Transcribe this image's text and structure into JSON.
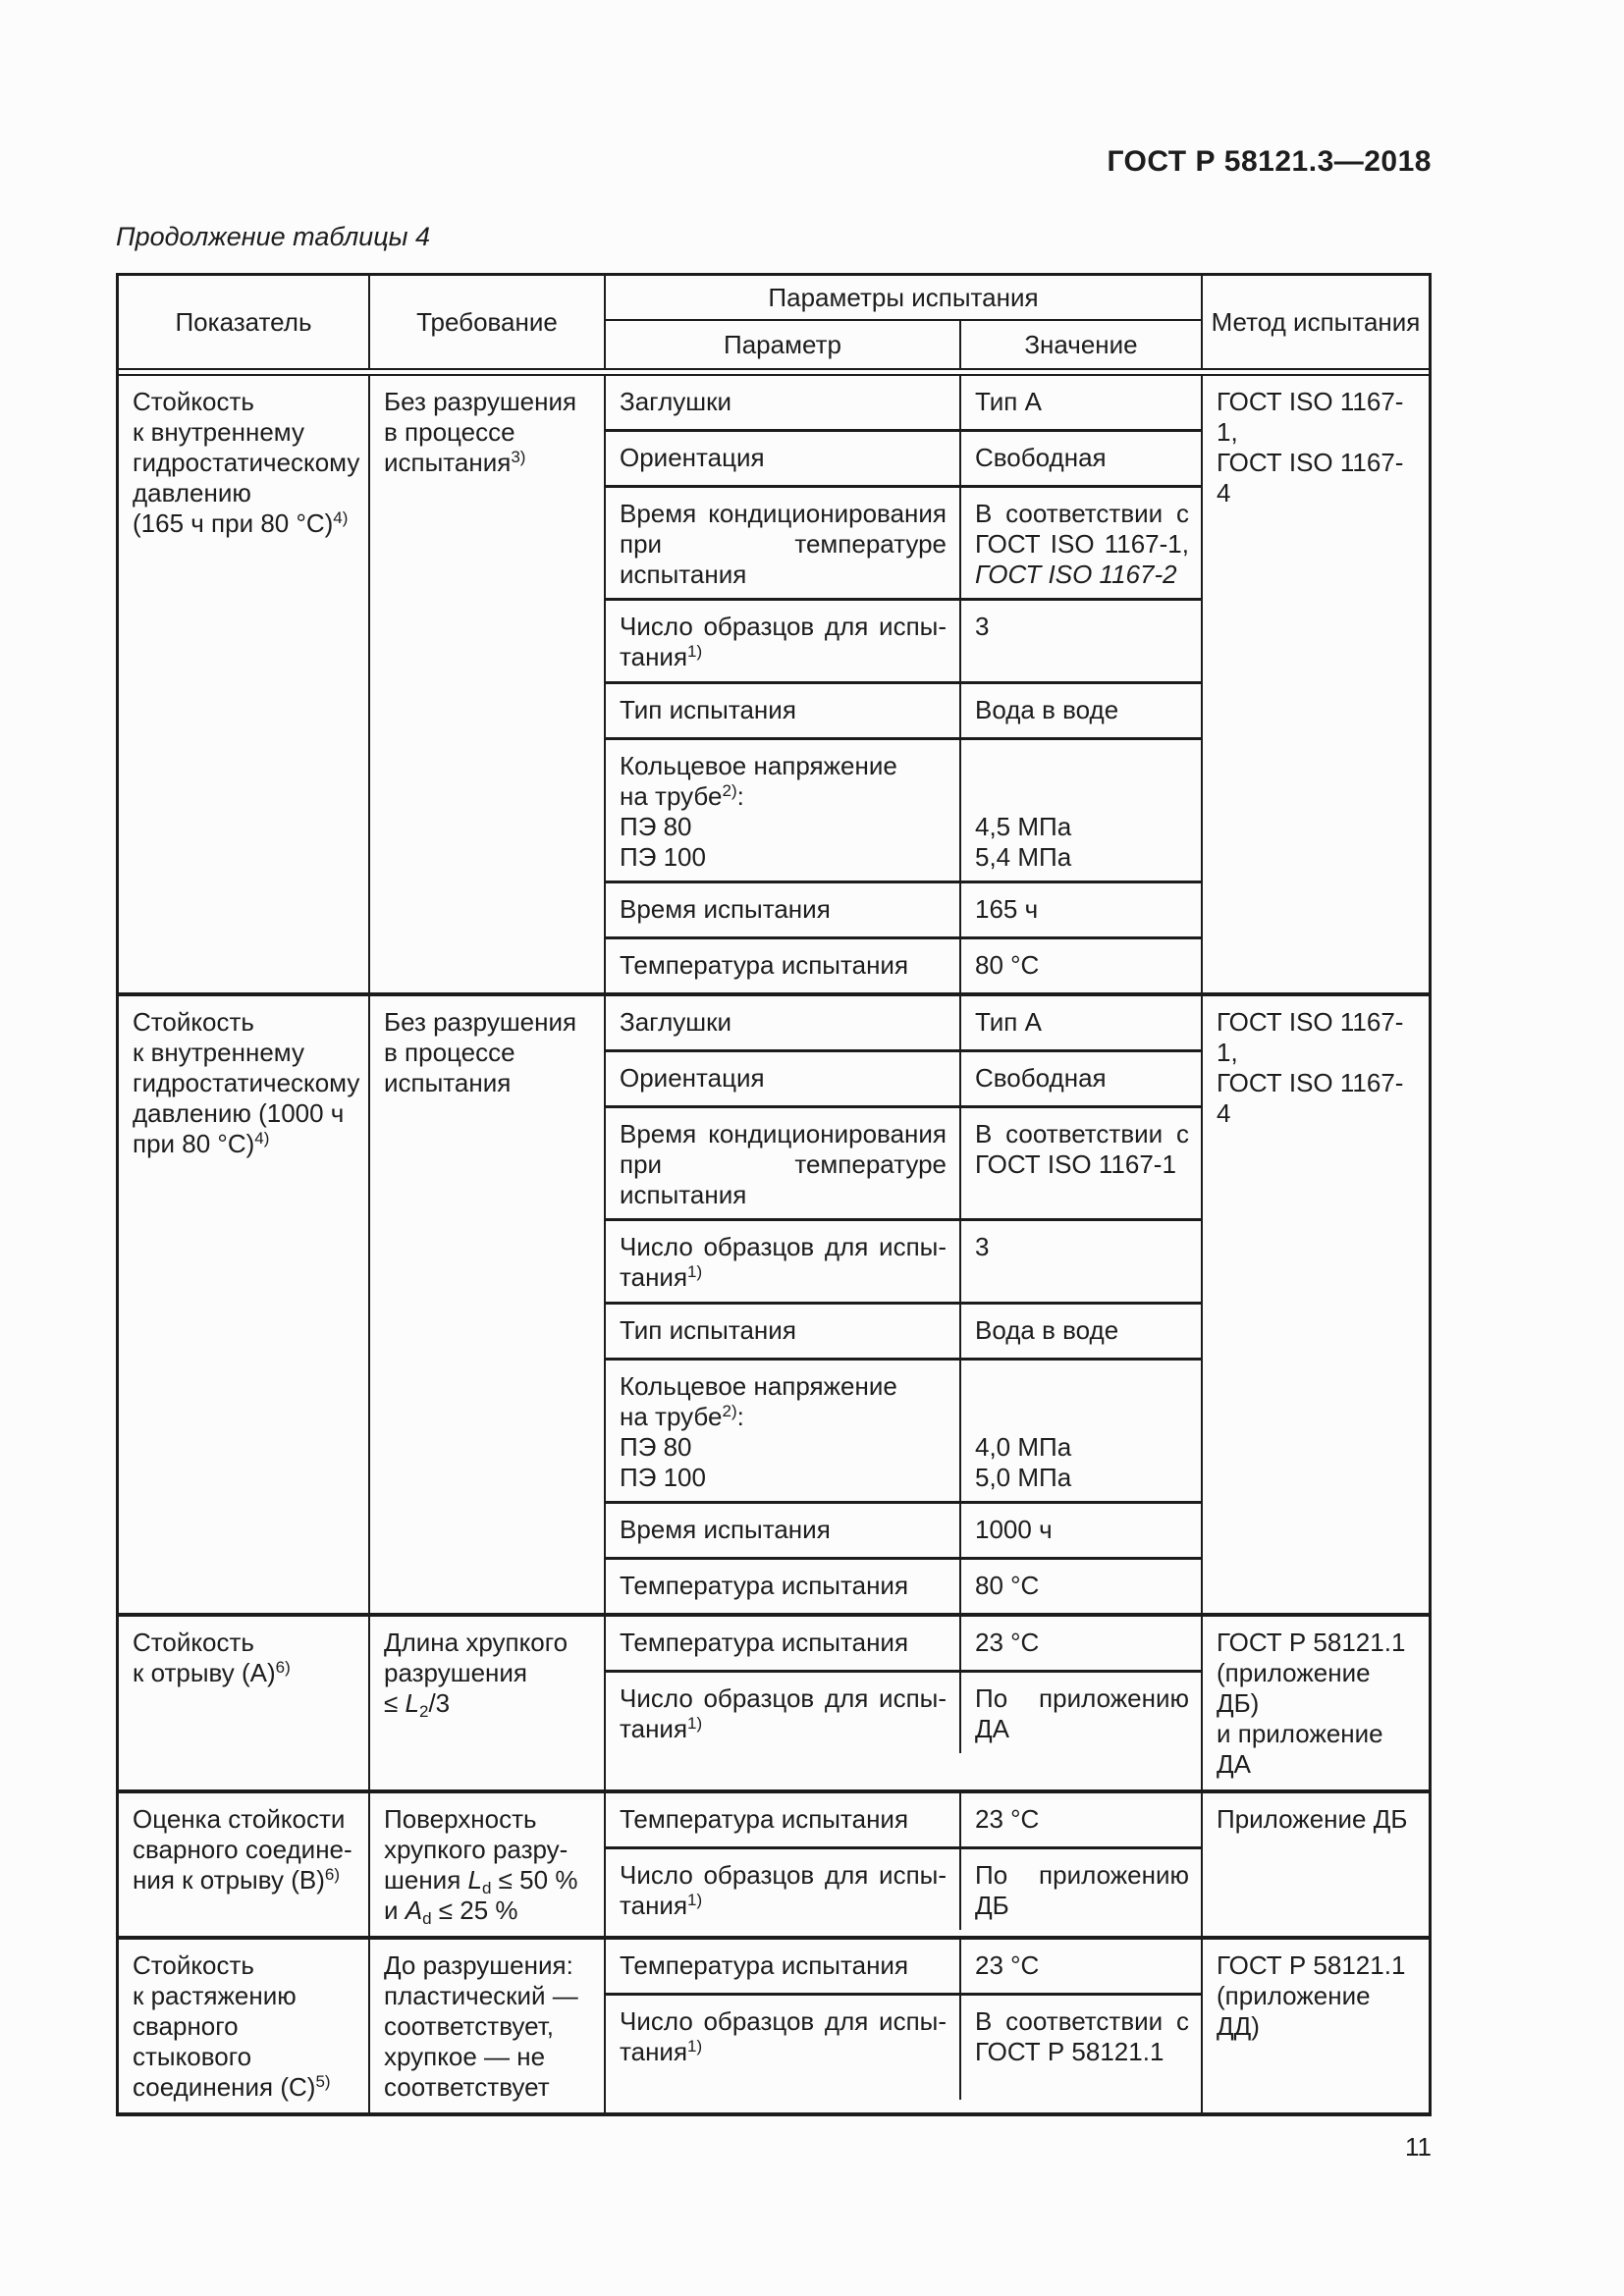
{
  "page": {
    "standard_title": "ГОСТ Р 58121.3—2018",
    "table_caption": "Продолжение таблицы 4",
    "page_number": "11"
  },
  "table": {
    "header": {
      "col_indicator": "Показатель",
      "col_requirement": "Требование",
      "col_params_group": "Параметры испытания",
      "col_param": "Параметр",
      "col_value": "Значение",
      "col_method": "Метод испытания"
    },
    "blocks": [
      {
        "indicator": {
          "text": "Стойкость\nк внутреннему\nгидростатическому\nдавлению\n(165 ч при 80 °C)",
          "sup": "4)"
        },
        "requirement": {
          "text": "Без разрушения\nв процессе\nиспытания",
          "sup": "3)"
        },
        "method": {
          "text": "ГОСТ ISO 1167-1,\nГОСТ ISO 1167-4"
        },
        "rows": [
          {
            "param": {
              "text": "Заглушки"
            },
            "value": {
              "text": "Тип А"
            }
          },
          {
            "param": {
              "text": "Ориентация"
            },
            "value": {
              "text": "Свободная"
            }
          },
          {
            "param": {
              "text": "Время кондиционирования при температуре испытания"
            },
            "value": {
              "text": "В соответствии с ГОСТ ISO 1167-1, ",
              "italic": "ГОСТ ISO 1167-2"
            }
          },
          {
            "param": {
              "text": "Число образцов для испы-тания",
              "sup": "1)"
            },
            "value": {
              "text": "3"
            }
          },
          {
            "param": {
              "text": "Тип испытания"
            },
            "value": {
              "text": "Вода в воде"
            }
          },
          {
            "param": {
              "text": "Кольцевое напряжение\nна трубе",
              "sup": "2)",
              "text2": ":\nПЭ 80\nПЭ 100"
            },
            "value": {
              "text": "4,5 МПа\n5,4 МПа"
            }
          },
          {
            "param": {
              "text": "Время испытания"
            },
            "value": {
              "text": "165 ч"
            }
          },
          {
            "param": {
              "text": "Температура испытания"
            },
            "value": {
              "text": "80 °C"
            }
          }
        ]
      },
      {
        "indicator": {
          "text": "Стойкость\nк внутреннему\nгидростатическому\nдавлению (1000 ч\nпри 80 °C)",
          "sup": "4)"
        },
        "requirement": {
          "text": "Без разрушения\nв процессе\nиспытания"
        },
        "method": {
          "text": "ГОСТ ISO 1167-1,\nГОСТ ISO 1167-4"
        },
        "rows": [
          {
            "param": {
              "text": "Заглушки"
            },
            "value": {
              "text": "Тип А"
            }
          },
          {
            "param": {
              "text": "Ориентация"
            },
            "value": {
              "text": "Свободная"
            }
          },
          {
            "param": {
              "text": "Время кондиционирования при температуре испытания"
            },
            "value": {
              "text": "В соответствии с ГОСТ ISO 1167-1"
            }
          },
          {
            "param": {
              "text": "Число образцов для испы-тания",
              "sup": "1)"
            },
            "value": {
              "text": "3"
            }
          },
          {
            "param": {
              "text": "Тип испытания"
            },
            "value": {
              "text": "Вода в воде"
            }
          },
          {
            "param": {
              "text": "Кольцевое напряжение\nна трубе",
              "sup": "2)",
              "text2": ":\nПЭ 80\nПЭ 100"
            },
            "value": {
              "text": "4,0 МПа\n5,0 МПа"
            }
          },
          {
            "param": {
              "text": "Время испытания"
            },
            "value": {
              "text": "1000 ч"
            }
          },
          {
            "param": {
              "text": "Температура испытания"
            },
            "value": {
              "text": "80 °C"
            }
          }
        ]
      },
      {
        "indicator": {
          "text": "Стойкость\nк отрыву (А)",
          "sup": "6)"
        },
        "requirement": {
          "text": "Длина хрупкого\nразрушения\n≤ ",
          "var1": "L",
          "sub1": "2",
          "text2": "/3"
        },
        "method": {
          "text": "ГОСТ Р 58121.1\n(приложение ДБ)\nи приложение ДА"
        },
        "rows": [
          {
            "param": {
              "text": "Температура испытания"
            },
            "value": {
              "text": "23 °C"
            }
          },
          {
            "param": {
              "text": "Число образцов для испы-тания",
              "sup": "1)"
            },
            "value": {
              "text": "По приложению ДА"
            }
          }
        ]
      },
      {
        "indicator": {
          "text": "Оценка стойкости\nсварного соедине-\nния к отрыву (В)",
          "sup": "6)"
        },
        "requirement": {
          "text": "Поверхность\nхрупкого разру-\nшения ",
          "var1": "L",
          "sub1": "d",
          "text2": " ≤ 50 %\nи ",
          "var2": "A",
          "sub2": "d",
          "text3": " ≤ 25 %"
        },
        "method": {
          "text": "Приложение ДБ"
        },
        "rows": [
          {
            "param": {
              "text": "Температура испытания"
            },
            "value": {
              "text": "23 °C"
            }
          },
          {
            "param": {
              "text": "Число образцов для испы-тания",
              "sup": "1)"
            },
            "value": {
              "text": "По приложению ДБ"
            }
          }
        ]
      },
      {
        "indicator": {
          "text": "Стойкость\nк растяжению\nсварного стыкового\nсоединения (С)",
          "sup": "5)"
        },
        "requirement": {
          "text": "До разрушения:\nпластический —\nсоответствует,\nхрупкое — не\nсоответствует"
        },
        "method": {
          "text": "ГОСТ Р 58121.1\n(приложение ДД)"
        },
        "rows": [
          {
            "param": {
              "text": "Температура испытания"
            },
            "value": {
              "text": "23 °C"
            }
          },
          {
            "param": {
              "text": "Число образцов для испы-тания",
              "sup": "1)"
            },
            "value": {
              "text": "В соответствии с ГОСТ Р 58121.1"
            }
          }
        ]
      }
    ]
  }
}
